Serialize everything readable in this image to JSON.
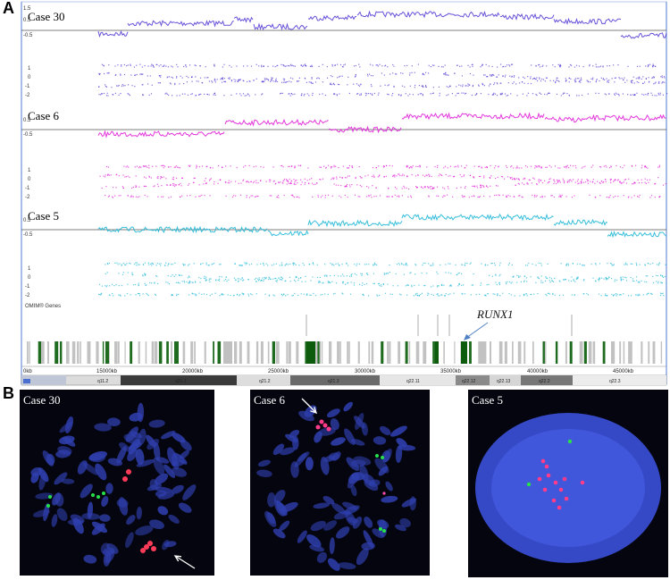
{
  "panels": {
    "a_letter": "A",
    "b_letter": "B"
  },
  "cases": [
    {
      "label": "Case 30",
      "color": "#5a3fd6"
    },
    {
      "label": "Case 6",
      "color": "#e021d8"
    },
    {
      "label": "Case 5",
      "color": "#22b8d8"
    }
  ],
  "axis": {
    "top_ticks": [
      "1.5",
      "0.5",
      "-0.5"
    ],
    "baf_ticks": [
      "1",
      "0",
      "-1",
      "-2"
    ],
    "kb_labels": [
      "0kb",
      "15000kb",
      "20000kb",
      "25000kb",
      "30000kb",
      "35000kb",
      "40000kb",
      "45000kb"
    ],
    "bands": [
      "q11.2",
      "q21.1",
      "q21.2",
      "q21.3",
      "q22.11",
      "q22.12",
      "q22.13",
      "q22.2",
      "q22.3"
    ],
    "watermark": "OMIM® Genes"
  },
  "gene": {
    "label": "RUNX1"
  },
  "fish": [
    {
      "label": "Case 30"
    },
    {
      "label": "Case 6"
    },
    {
      "label": "Case 5"
    }
  ]
}
